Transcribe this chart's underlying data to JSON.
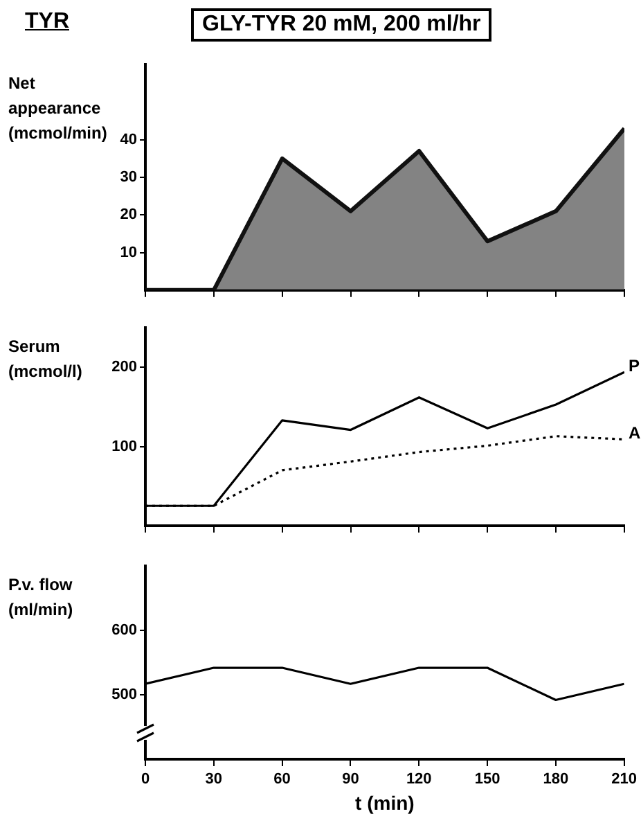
{
  "chart_data": [
    {
      "type": "area",
      "title": "GLY-TYR 20 mM, 200 ml/hr",
      "annotations": [
        "TYR"
      ],
      "ylabel": "Net appearance (mcmol/min)",
      "x": [
        0,
        30,
        60,
        90,
        120,
        150,
        180,
        210
      ],
      "series": [
        {
          "color": "#111111",
          "values": [
            0,
            0,
            35,
            21,
            37,
            13,
            21,
            43
          ]
        }
      ],
      "xlim": [
        0,
        210
      ],
      "xticks": [
        0,
        30,
        60,
        90,
        120,
        150,
        180,
        210
      ],
      "ylim": [
        0,
        60
      ],
      "yticks": [
        10,
        20,
        30,
        40
      ],
      "tick_labels": "y",
      "grid": false,
      "legend": false,
      "marker": "none"
    },
    {
      "type": "line",
      "ylabel": "Serum (mcmol/l)",
      "x": [
        0,
        30,
        60,
        90,
        120,
        150,
        180,
        210
      ],
      "series": [
        {
          "name": "P",
          "color": "#000000",
          "line_style": "solid",
          "values": [
            25,
            25,
            133,
            121,
            162,
            123,
            153,
            194
          ]
        },
        {
          "name": "A",
          "color": "#000000",
          "line_style": "dotted",
          "values": [
            25,
            25,
            70,
            81,
            93,
            101,
            113,
            109
          ]
        }
      ],
      "xlim": [
        0,
        210
      ],
      "xticks": [
        0,
        30,
        60,
        90,
        120,
        150,
        180,
        210
      ],
      "ylim": [
        0,
        250
      ],
      "yticks": [
        100,
        200
      ],
      "tick_labels": "y",
      "grid": false,
      "legend": false,
      "marker": "none"
    },
    {
      "type": "line",
      "ylabel": "P.v. flow (ml/min)",
      "xlabel": "t (min)",
      "x": [
        0,
        30,
        60,
        90,
        120,
        150,
        180,
        210
      ],
      "series": [
        {
          "color": "#000000",
          "values": [
            517,
            542,
            542,
            517,
            542,
            542,
            492,
            517
          ]
        }
      ],
      "xlim": [
        0,
        210
      ],
      "xticks": [
        0,
        30,
        60,
        90,
        120,
        150,
        180,
        210
      ],
      "ylim": [
        400,
        700
      ],
      "yticks": [
        500,
        600
      ],
      "grid": false,
      "legend": false,
      "marker": "none"
    }
  ]
}
